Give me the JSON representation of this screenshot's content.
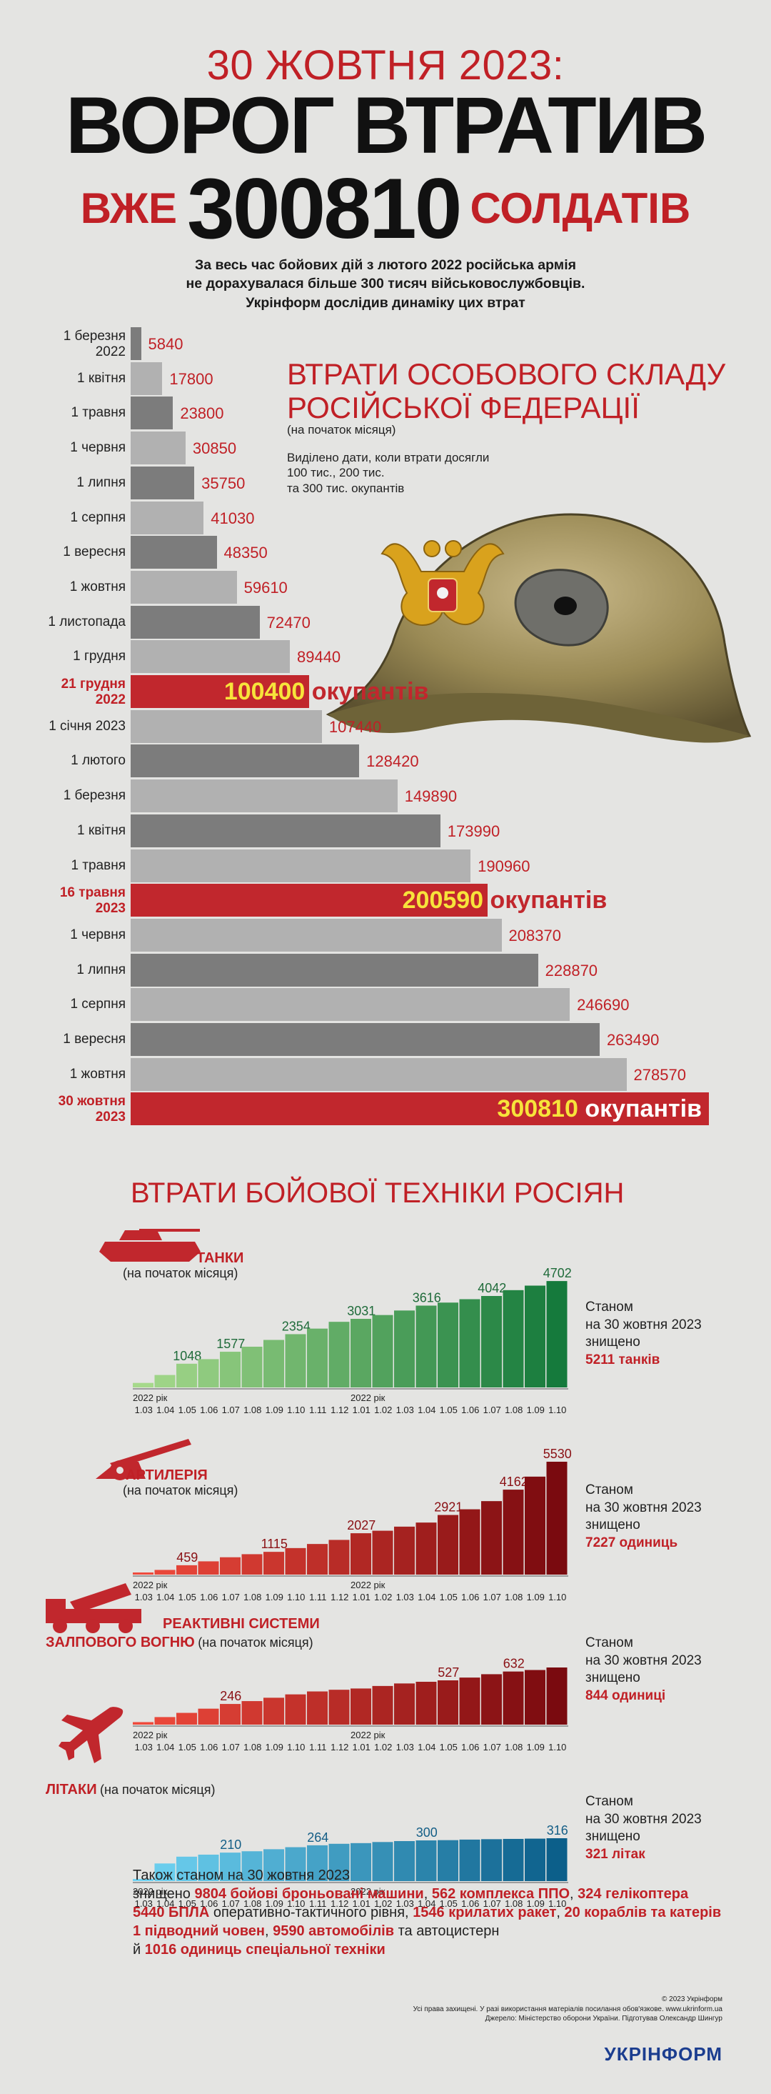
{
  "header": {
    "date": "30 ЖОВТНЯ 2023:",
    "headline": "ВОРОГ ВТРАТИВ",
    "line3_left": "ВЖЕ",
    "line3_number": "300810",
    "line3_right": "СОЛДАТІВ"
  },
  "intro": {
    "line1": "За весь час бойових дій з лютого 2022 російська армія",
    "line2": "не дорахувалася більше 300 тисяч військовослужбовців.",
    "line3": "Укрінформ дослідив динаміку цих втрат"
  },
  "personnel": {
    "title_line1": "ВТРАТИ ОСОБОВОГО СКЛАДУ",
    "title_line2": "РОСІЙСЬКОЇ ФЕДЕРАЦІЇ",
    "subtitle": "(на початок місяця)",
    "note_line1": "Виділено дати, коли втрати досягли",
    "note_line2": "100 тис., 200 тис.",
    "note_line3": "та 300 тис. окупантів"
  },
  "colors": {
    "accent_red": "#c02026",
    "highlight_yellow": "#f7e33b",
    "bar_dark": "#7c7c7c",
    "bar_light": "#b1b1b1",
    "logo_blue": "#1b3d8f"
  },
  "chart_data": [
    {
      "type": "bar",
      "orientation": "horizontal",
      "title": "ВТРАТИ ОСОБОВОГО СКЛАДУ РОСІЙСЬКОЇ ФЕДЕРАЦІЇ",
      "categories": [
        "1 березня 2022",
        "1 квітня",
        "1 травня",
        "1 червня",
        "1 липня",
        "1 серпня",
        "1 вересня",
        "1 жовтня",
        "1 листопада",
        "1 грудня",
        "21 грудня 2022",
        "1 січня 2023",
        "1 лютого",
        "1 березня",
        "1 квітня",
        "1 травня",
        "16 травня 2023",
        "1 червня",
        "1 липня",
        "1 серпня",
        "1 вересня",
        "1 жовтня",
        "30 жовтня 2023"
      ],
      "rows": [
        {
          "label1": "1 березня",
          "label2": "2022",
          "value": 5840,
          "text": "5840"
        },
        {
          "label1": "1 квітня",
          "value": 17800,
          "text": "17800"
        },
        {
          "label1": "1 травня",
          "value": 23800,
          "text": "23800"
        },
        {
          "label1": "1 червня",
          "value": 30850,
          "text": "30850"
        },
        {
          "label1": "1 липня",
          "value": 35750,
          "text": "35750"
        },
        {
          "label1": "1 серпня",
          "value": 41030,
          "text": "41030"
        },
        {
          "label1": "1 вересня",
          "value": 48350,
          "text": "48350"
        },
        {
          "label1": "1 жовтня",
          "value": 59610,
          "text": "59610"
        },
        {
          "label1": "1 листопада",
          "value": 72470,
          "text": "72470"
        },
        {
          "label1": "1 грудня",
          "value": 89440,
          "text": "89440"
        },
        {
          "label1": "21 грудня",
          "label2": "2022",
          "value": 100400,
          "text": "100400",
          "highlight": true,
          "suffix": "окупантів"
        },
        {
          "label1": "1 січня 2023",
          "value": 107440,
          "text": "107440"
        },
        {
          "label1": "1 лютого",
          "value": 128420,
          "text": "128420"
        },
        {
          "label1": "1 березня",
          "value": 149890,
          "text": "149890"
        },
        {
          "label1": "1 квітня",
          "value": 173990,
          "text": "173990"
        },
        {
          "label1": "1 травня",
          "value": 190960,
          "text": "190960"
        },
        {
          "label1": "16 травня",
          "label2": "2023",
          "value": 200590,
          "text": "200590",
          "highlight": true,
          "suffix": "окупантів"
        },
        {
          "label1": "1 червня",
          "value": 208370,
          "text": "208370"
        },
        {
          "label1": "1 липня",
          "value": 228870,
          "text": "228870"
        },
        {
          "label1": "1 серпня",
          "value": 246690,
          "text": "246690"
        },
        {
          "label1": "1 вересня",
          "value": 263490,
          "text": "263490"
        },
        {
          "label1": "1 жовтня",
          "value": 278570,
          "text": "278570"
        },
        {
          "label1": "30 жовтня",
          "label2": "2023",
          "value": 300810,
          "text": "300810",
          "highlight": true,
          "suffix": "окупантів"
        }
      ]
    },
    {
      "type": "bar",
      "name": "ТАНКИ",
      "values": [
        0,
        0,
        0,
        0,
        0,
        0,
        0,
        0,
        0,
        0,
        0,
        0,
        0,
        0,
        0,
        0,
        0,
        0,
        0,
        0
      ],
      "value_labels": []
    }
  ],
  "equipment": {
    "title": "ВТРАТИ БОЙОВОЇ ТЕХНІКИ РОСІЯН",
    "axis": {
      "year1": "2022 рік",
      "year2": "2022 рік",
      "ticks": [
        "1.03",
        "1.04",
        "1.05",
        "1.06",
        "1.07",
        "1.08",
        "1.09",
        "1.10",
        "1.11",
        "1.12",
        "1.01",
        "1.02",
        "1.03",
        "1.04",
        "1.05",
        "1.06",
        "1.07",
        "1.08",
        "1.09",
        "1.10"
      ]
    },
    "charts": [
      {
        "name": "ТАНКИ",
        "subtitle": "(на початок місяця)",
        "values": [
          200,
          550,
          1048,
          1250,
          1577,
          1800,
          2100,
          2354,
          2600,
          2900,
          3031,
          3200,
          3400,
          3616,
          3750,
          3900,
          4042,
          4300,
          4500,
          4702
        ],
        "labels": {
          "2": "1048",
          "4": "1577",
          "7": "2354",
          "10": "3031",
          "13": "3616",
          "16": "4042",
          "19": "4702"
        },
        "max": 4800,
        "status1": "Станом",
        "status2": "на 30 жовтня 2023",
        "status3": "знищено",
        "total": "5211 танків",
        "grad_from": "#a6d98b",
        "grad_to": "#157a3c"
      },
      {
        "name": "АРТИЛЕРІЯ",
        "subtitle": "(на початок місяця)",
        "values": [
          80,
          230,
          459,
          650,
          850,
          1000,
          1115,
          1300,
          1500,
          1700,
          2027,
          2150,
          2350,
          2550,
          2921,
          3200,
          3600,
          4162,
          4800,
          5530
        ],
        "labels": {
          "2": "459",
          "6": "1115",
          "10": "2027",
          "14": "2921",
          "17": "4162",
          "19": "5530"
        },
        "max": 5600,
        "status1": "Станом",
        "status2": "на 30 жовтня 2023",
        "status3": "знищено",
        "total": "7227 одиниць",
        "grad_from": "#ef4a3c",
        "grad_to": "#7a0a0f"
      },
      {
        "name1": "РЕАКТИВНІ СИСТЕМИ",
        "name2": "ЗАЛПОВОГО ВОГНЮ",
        "subtitle": "(на початок місяця)",
        "values": [
          30,
          90,
          140,
          190,
          246,
          280,
          320,
          360,
          395,
          415,
          430,
          460,
          490,
          510,
          527,
          560,
          600,
          632,
          650,
          680
        ],
        "labels": {
          "4": "246",
          "14": "527",
          "17": "632"
        },
        "max": 680,
        "status1": "Станом",
        "status2": "на 30 жовтня 2023",
        "status3": "знищено",
        "total": "844 одиниці",
        "grad_from": "#ef4a3c",
        "grad_to": "#7a0a0f"
      },
      {
        "name": "ЛІТАКИ",
        "subtitle": "(на початок місяця)",
        "values": [
          10,
          130,
          180,
          195,
          210,
          220,
          235,
          250,
          264,
          275,
          280,
          288,
          295,
          300,
          302,
          306,
          309,
          311,
          313,
          316
        ],
        "labels": {
          "4": "210",
          "8": "264",
          "13": "300",
          "19": "316"
        },
        "max": 316,
        "status1": "Станом",
        "status2": "на 30 жовтня 2023",
        "status3": "знищено",
        "total": "321 літак",
        "grad_from": "#6fd3f3",
        "grad_to": "#0c5f8a"
      }
    ]
  },
  "summary": {
    "lead": "Також станом  на 30 жовтня 2023",
    "line1_a": "знищено ",
    "line1_b": "9804 бойові броньовані машини",
    "line1_c": ",  ",
    "line1_d": "562 комплекса ППО",
    "line1_e": ", ",
    "line1_f": "324  гелікоптера",
    "line2_a": "5440 БПЛА",
    "line2_b": " оперативно-тактичного рівня, ",
    "line2_c": "1546 крилатих ракет",
    "line2_d": ", ",
    "line2_e": "20 кораблів та катерів",
    "line3_a": "1  підводний човен",
    "line3_b": ",  ",
    "line3_c": "9590 автомобілів",
    "line3_d": " та автоцистерн",
    "line4_a": "й  ",
    "line4_b": "1016 одиниць спеціальної техніки"
  },
  "footer": {
    "copyright": "© 2023 Укрінформ",
    "rights": "Усі права захищені. У разі використання матеріалів посилання обов'язкове. www.ukrinform.ua",
    "source": "Джерело: Міністерство оборони України. Підготував Олександр Шингур",
    "logo": "УКРІНФОРМ"
  }
}
